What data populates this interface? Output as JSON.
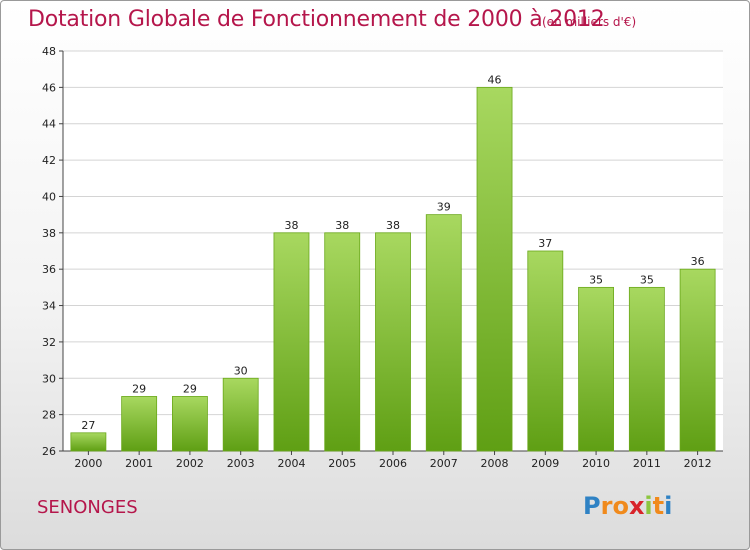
{
  "title": "Dotation Globale de Fonctionnement de 2000 à 2012",
  "subtitle": "(en milliers d'€)",
  "place": "SENONGES",
  "logo": {
    "letters": [
      "P",
      "r",
      "o",
      "x",
      "i",
      "t",
      "i"
    ],
    "colors": [
      "#2f82c4",
      "#f08a1c",
      "#f08a1c",
      "#d8232a",
      "#8cc63f",
      "#f08a1c",
      "#2f82c4"
    ]
  },
  "colors": {
    "bar_light": "#a8d860",
    "bar_dark": "#5f9f14",
    "bar_edge": "#6aa81a",
    "title": "#b5164b"
  },
  "chart_data": {
    "type": "bar",
    "title": "Dotation Globale de Fonctionnement de 2000 à 2012",
    "subtitle": "(en milliers d'€)",
    "categories": [
      "2000",
      "2001",
      "2002",
      "2003",
      "2004",
      "2005",
      "2006",
      "2007",
      "2008",
      "2009",
      "2010",
      "2011",
      "2012"
    ],
    "values": [
      27,
      29,
      29,
      30,
      38,
      38,
      38,
      39,
      46,
      37,
      35,
      35,
      36
    ],
    "ylim": [
      26,
      48
    ],
    "yticks": [
      26,
      28,
      30,
      32,
      34,
      36,
      38,
      40,
      42,
      44,
      46,
      48
    ],
    "grid": true,
    "xlabel": "",
    "ylabel": ""
  }
}
